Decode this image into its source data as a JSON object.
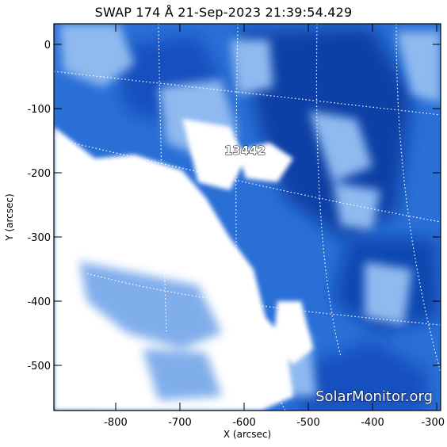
{
  "image": {
    "title": "SWAP 174 Å 21-Sep-2023 21:39:54.429",
    "x_axis": {
      "label": "X (arcsec)",
      "ticks": [
        "-800",
        "-700",
        "-600",
        "-500",
        "-400",
        "-300"
      ]
    },
    "y_axis": {
      "label": "Y (arcsec)",
      "ticks": [
        "0",
        "-100",
        "-200",
        "-300",
        "-400",
        "-500"
      ]
    },
    "region_label": "13442",
    "watermark": "SolarMonitor.org",
    "colors": {
      "frame": "#000000",
      "deep_blue": "#0b3fa6",
      "mid_blue": "#2a6fd6",
      "light_blue": "#8fbaf0",
      "white": "#ffffff"
    }
  }
}
